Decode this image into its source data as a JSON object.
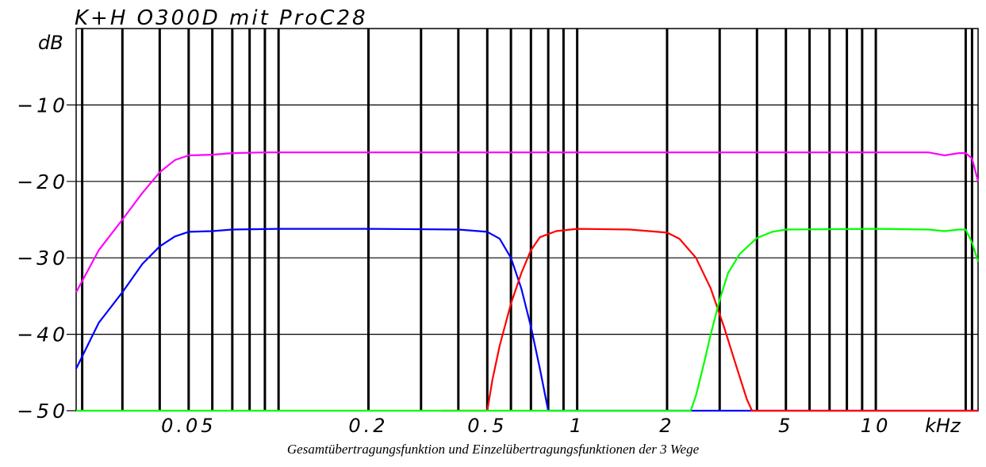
{
  "chart_data": {
    "type": "line",
    "title": "K+H O300D mit ProC28",
    "ylabel": "dB",
    "xunit": "kHz",
    "xscale": "log",
    "xlim": [
      0.021,
      22
    ],
    "ylim": [
      -50,
      0
    ],
    "grid": true,
    "yticks": [
      {
        "value": -10,
        "label": "−10"
      },
      {
        "value": -20,
        "label": "−20"
      },
      {
        "value": -30,
        "label": "−30"
      },
      {
        "value": -40,
        "label": "−40"
      },
      {
        "value": -50,
        "label": "−50"
      }
    ],
    "xticks": [
      {
        "value": 0.05,
        "label": "0.05"
      },
      {
        "value": 0.2,
        "label": "0.2"
      },
      {
        "value": 0.5,
        "label": "0.5"
      },
      {
        "value": 1,
        "label": "1"
      },
      {
        "value": 2,
        "label": "2"
      },
      {
        "value": 5,
        "label": "5"
      },
      {
        "value": 10,
        "label": "10"
      }
    ],
    "vgrid": [
      0.022,
      0.03,
      0.04,
      0.05,
      0.06,
      0.07,
      0.08,
      0.09,
      0.1,
      0.2,
      0.3,
      0.4,
      0.5,
      0.6,
      0.7,
      0.8,
      0.9,
      1,
      2,
      3,
      4,
      5,
      6,
      7,
      8,
      9,
      10,
      20,
      21
    ],
    "series": [
      {
        "color": "#ff00ff",
        "points": [
          [
            0.021,
            -34.5
          ],
          [
            0.025,
            -29
          ],
          [
            0.03,
            -25
          ],
          [
            0.035,
            -21.5
          ],
          [
            0.04,
            -18.8
          ],
          [
            0.045,
            -17.2
          ],
          [
            0.05,
            -16.6
          ],
          [
            0.06,
            -16.5
          ],
          [
            0.07,
            -16.3
          ],
          [
            0.09,
            -16.2
          ],
          [
            0.1,
            -16.2
          ],
          [
            0.5,
            -16.2
          ],
          [
            1,
            -16.2
          ],
          [
            2,
            -16.2
          ],
          [
            5,
            -16.2
          ],
          [
            10,
            -16.2
          ],
          [
            15,
            -16.2
          ],
          [
            17,
            -16.6
          ],
          [
            19,
            -16.3
          ],
          [
            20,
            -16.3
          ],
          [
            21,
            -17
          ],
          [
            22,
            -20
          ]
        ]
      },
      {
        "color": "#0000ff",
        "points": [
          [
            0.021,
            -44.5
          ],
          [
            0.025,
            -38.5
          ],
          [
            0.03,
            -34.5
          ],
          [
            0.035,
            -30.8
          ],
          [
            0.04,
            -28.5
          ],
          [
            0.045,
            -27.2
          ],
          [
            0.05,
            -26.6
          ],
          [
            0.06,
            -26.5
          ],
          [
            0.07,
            -26.3
          ],
          [
            0.1,
            -26.2
          ],
          [
            0.2,
            -26.2
          ],
          [
            0.4,
            -26.3
          ],
          [
            0.5,
            -26.6
          ],
          [
            0.55,
            -27.5
          ],
          [
            0.6,
            -30
          ],
          [
            0.65,
            -34
          ],
          [
            0.7,
            -39
          ],
          [
            0.75,
            -44.5
          ],
          [
            0.8,
            -50
          ],
          [
            2.4,
            -50
          ],
          [
            3.5,
            -50
          ],
          [
            22,
            -50
          ]
        ]
      },
      {
        "color": "#ff0000",
        "points": [
          [
            0.35,
            -50
          ],
          [
            0.5,
            -50
          ],
          [
            0.52,
            -46
          ],
          [
            0.55,
            -41.5
          ],
          [
            0.6,
            -36
          ],
          [
            0.65,
            -32
          ],
          [
            0.7,
            -29
          ],
          [
            0.75,
            -27.3
          ],
          [
            0.85,
            -26.5
          ],
          [
            1,
            -26.2
          ],
          [
            1.5,
            -26.3
          ],
          [
            2,
            -26.7
          ],
          [
            2.2,
            -27.5
          ],
          [
            2.5,
            -30
          ],
          [
            2.8,
            -34
          ],
          [
            3.1,
            -39
          ],
          [
            3.4,
            -44
          ],
          [
            3.7,
            -48.5
          ],
          [
            3.85,
            -50
          ],
          [
            22,
            -50
          ]
        ]
      },
      {
        "color": "#00ff00",
        "points": [
          [
            0.021,
            -50
          ],
          [
            2.4,
            -50
          ],
          [
            2.5,
            -48
          ],
          [
            2.65,
            -44
          ],
          [
            2.8,
            -40
          ],
          [
            3,
            -35.5
          ],
          [
            3.2,
            -32
          ],
          [
            3.5,
            -29.5
          ],
          [
            4,
            -27.4
          ],
          [
            4.5,
            -26.6
          ],
          [
            5,
            -26.3
          ],
          [
            10,
            -26.2
          ],
          [
            15,
            -26.3
          ],
          [
            17,
            -26.5
          ],
          [
            19,
            -26.3
          ],
          [
            20,
            -26.3
          ],
          [
            21,
            -28
          ],
          [
            22,
            -30.5
          ]
        ]
      }
    ]
  },
  "caption": "Gesamtübertragungsfunktion und Einzelübertragungsfunktionen der 3 Wege"
}
